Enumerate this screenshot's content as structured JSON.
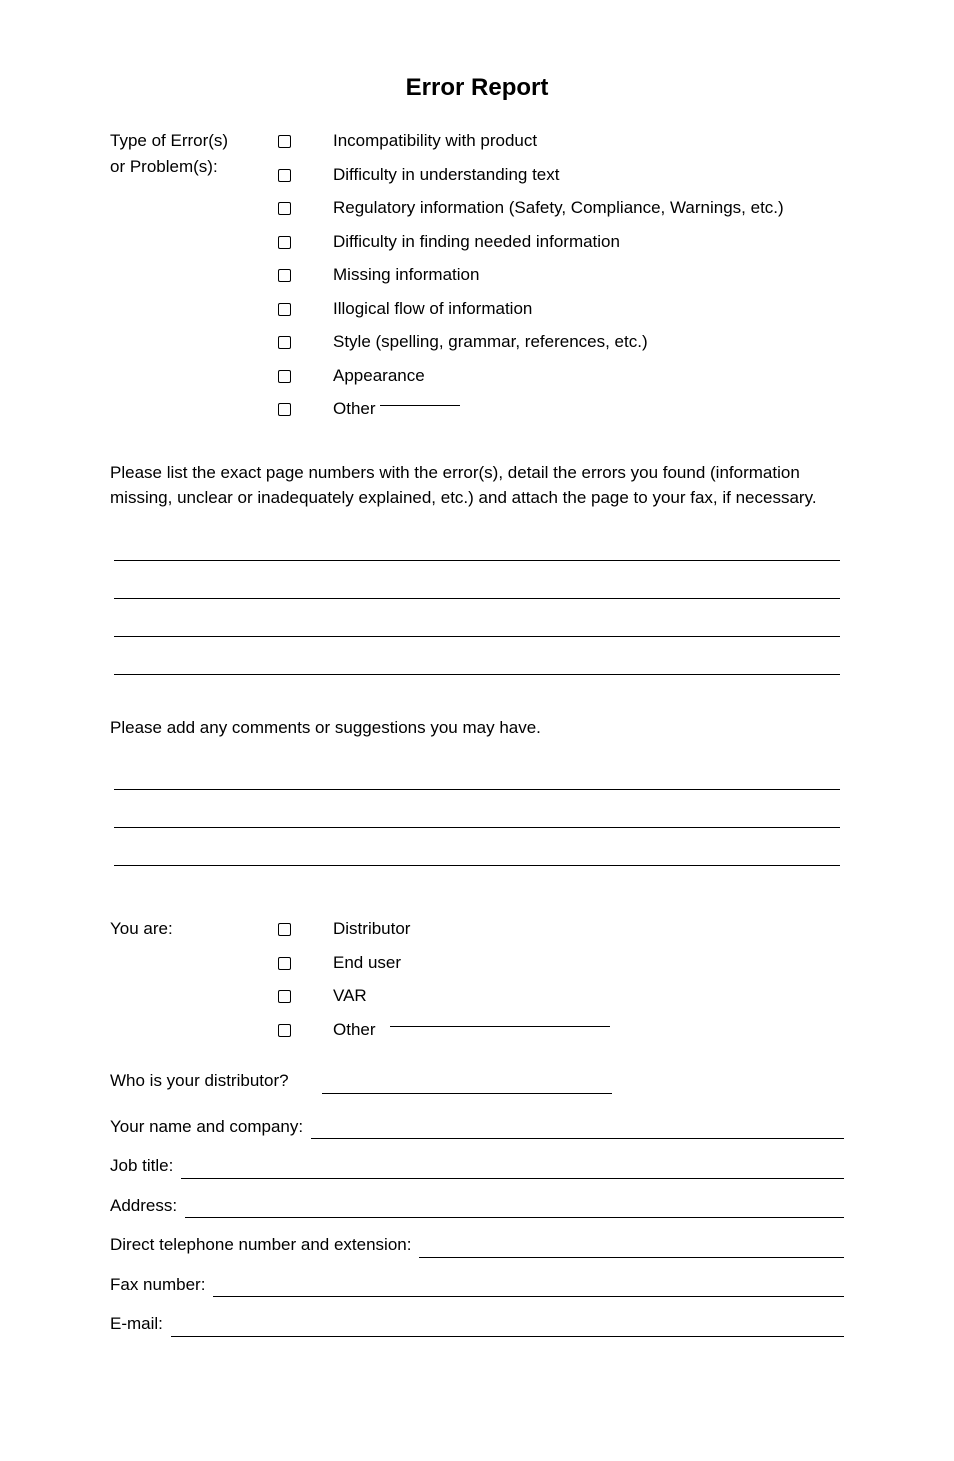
{
  "title": "Error Report",
  "typeSection": {
    "labelLine1": "Type of Error(s)",
    "labelLine2": "or Problem(s):",
    "options": [
      "Incompatibility with product",
      "Difficulty in understanding text",
      "Regulatory information (Safety, Compliance, Warnings, etc.)",
      "Difficulty in finding needed information",
      "Missing information",
      "Illogical flow of information",
      "Style (spelling, grammar, references, etc.)",
      "Appearance"
    ],
    "otherLabel": "Other"
  },
  "instruction1": "Please list the exact page numbers with the error(s), detail the errors you found (information missing, unclear or inadequately explained, etc.) and attach the page to your fax, if necessary.",
  "instruction2": "Please add any comments or suggestions you may have.",
  "youAre": {
    "label": "You are:",
    "options": [
      "Distributor",
      "End user",
      "VAR"
    ],
    "otherLabel": "Other"
  },
  "distributorLabel": "Who is your distributor?",
  "fields": {
    "nameCompany": "Your name and company:",
    "jobTitle": "Job title:",
    "address": "Address:",
    "phone": "Direct telephone number and extension:",
    "fax": "Fax number:",
    "email": "E-mail:"
  },
  "writeLines1": 4,
  "writeLines2": 3,
  "colors": {
    "text": "#000000",
    "background": "#ffffff",
    "line": "#000000"
  }
}
